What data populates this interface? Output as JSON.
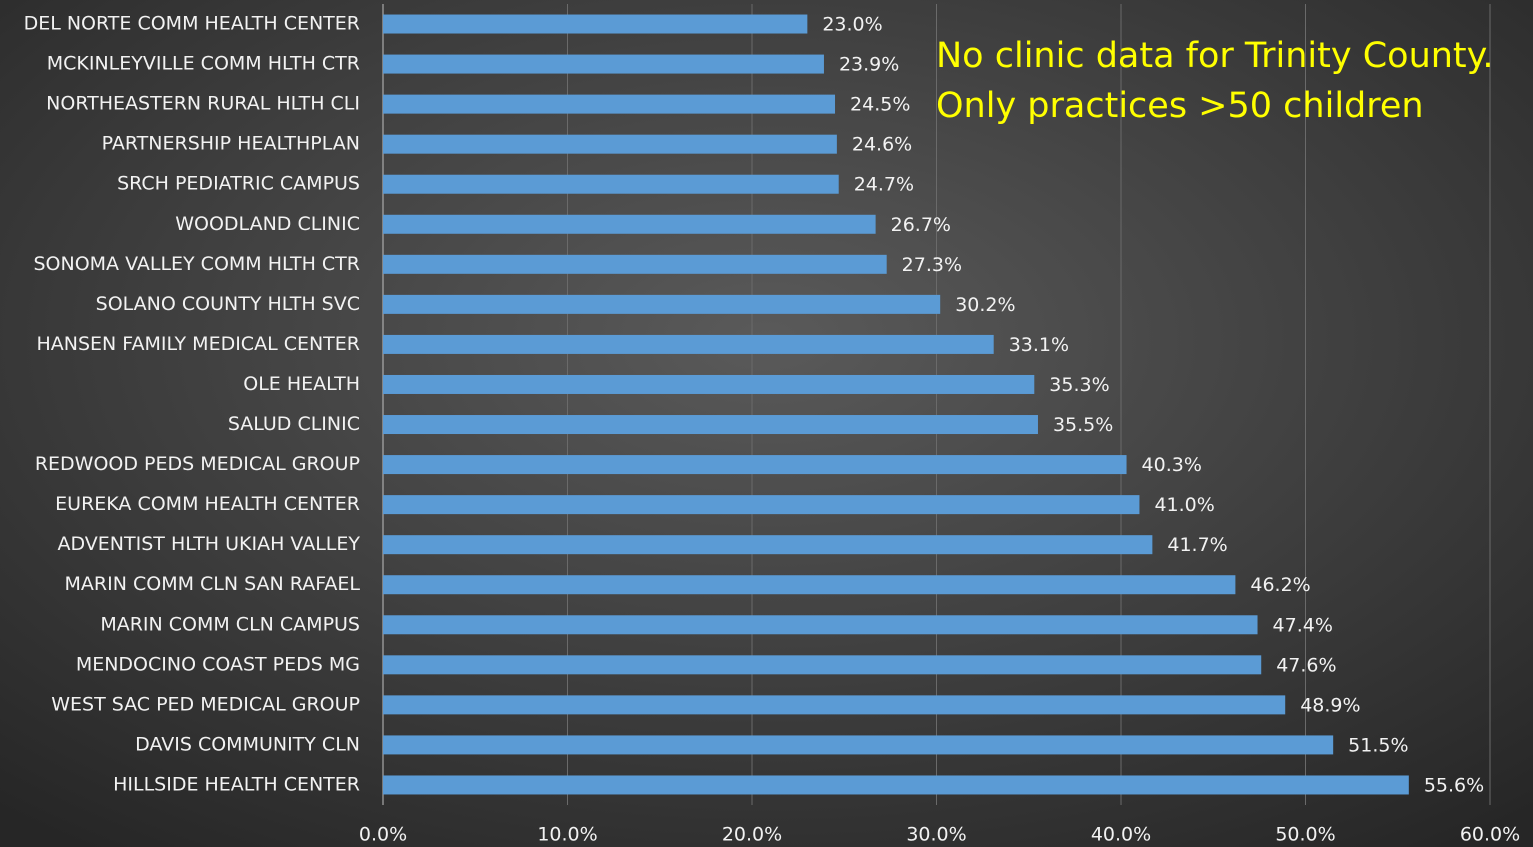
{
  "chart_data": {
    "type": "barh",
    "annotations": [
      "No clinic data for Trinity County.",
      "Only practices >50 children"
    ],
    "categories": [
      "DEL NORTE COMM HEALTH CENTER",
      "MCKINLEYVILLE COMM HLTH CTR",
      "NORTHEASTERN RURAL HLTH CLI",
      "PARTNERSHIP HEALTHPLAN",
      "SRCH PEDIATRIC CAMPUS",
      "WOODLAND CLINIC",
      "SONOMA VALLEY COMM HLTH CTR",
      "SOLANO COUNTY HLTH SVC",
      "HANSEN FAMILY MEDICAL CENTER",
      "OLE HEALTH",
      "SALUD CLINIC",
      "REDWOOD PEDS MEDICAL GROUP",
      "EUREKA COMM HEALTH CENTER",
      "ADVENTIST HLTH UKIAH VALLEY",
      "MARIN COMM CLN SAN RAFAEL",
      "MARIN COMM CLN CAMPUS",
      "MENDOCINO COAST PEDS MG",
      "WEST SAC PED MEDICAL GROUP",
      "DAVIS COMMUNITY CLN",
      "HILLSIDE HEALTH CENTER"
    ],
    "values": [
      23.0,
      23.9,
      24.5,
      24.6,
      24.7,
      26.7,
      27.3,
      30.2,
      33.1,
      35.3,
      35.5,
      40.3,
      41.0,
      41.7,
      46.2,
      47.4,
      47.6,
      48.9,
      51.5,
      55.6
    ],
    "value_labels": [
      "23.0%",
      "23.9%",
      "24.5%",
      "24.6%",
      "24.7%",
      "26.7%",
      "27.3%",
      "30.2%",
      "33.1%",
      "35.3%",
      "35.5%",
      "40.3%",
      "41.0%",
      "41.7%",
      "46.2%",
      "47.4%",
      "47.6%",
      "48.9%",
      "51.5%",
      "55.6%"
    ],
    "color": "#5b9bd5",
    "xlim": [
      0,
      60
    ],
    "xticks": [
      {
        "value": 0,
        "label": "0.0%"
      },
      {
        "value": 10,
        "label": "10.0%"
      },
      {
        "value": 20,
        "label": "20.0%"
      },
      {
        "value": 30,
        "label": "30.0%"
      },
      {
        "value": 40,
        "label": "40.0%"
      },
      {
        "value": 50,
        "label": "50.0%"
      },
      {
        "value": 60,
        "label": "60.0%"
      }
    ],
    "grid": true
  }
}
